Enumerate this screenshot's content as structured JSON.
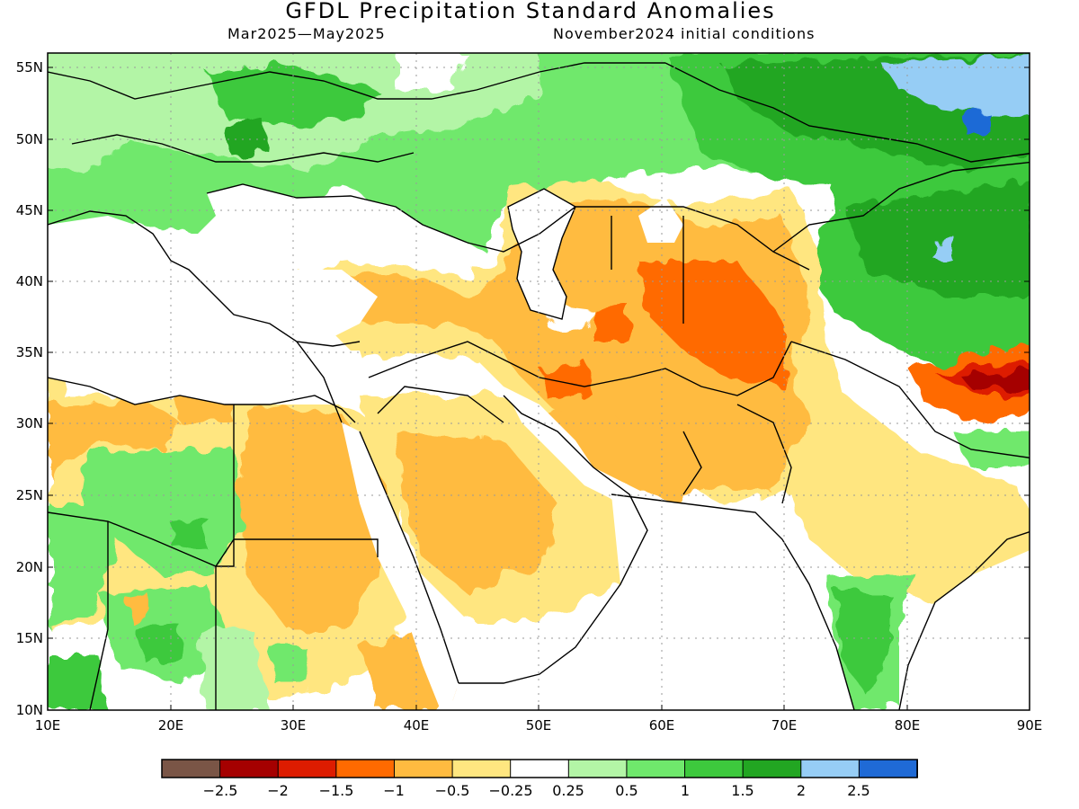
{
  "title": "GFDL Precipitation Standard Anomalies",
  "subtitle_left": "Mar2025—May2025",
  "subtitle_right": "November2024 initial conditions",
  "map": {
    "lon_range": [
      10,
      90
    ],
    "lat_range": [
      10,
      56
    ],
    "lat_ticks": [
      "55N",
      "50N",
      "45N",
      "40N",
      "35N",
      "30N",
      "25N",
      "20N",
      "15N",
      "10N"
    ],
    "lon_ticks": [
      "10E",
      "20E",
      "30E",
      "40E",
      "50E",
      "60E",
      "70E",
      "80E",
      "90E"
    ],
    "gridlines": "dotted"
  },
  "colorbar": {
    "colors": [
      "#7a5546",
      "#a50000",
      "#dd1c00",
      "#ff6a00",
      "#ffbb40",
      "#ffe680",
      "#ffffff",
      "#b3f5a6",
      "#6fe86c",
      "#3dc93d",
      "#22a622",
      "#96cdf5",
      "#1f6ad6"
    ],
    "labels": [
      "−2.5",
      "−2",
      "−1.5",
      "−1",
      "−0.5",
      "−0.25",
      "0.25",
      "0.5",
      "1",
      "1.5",
      "2",
      "2.5"
    ]
  }
}
